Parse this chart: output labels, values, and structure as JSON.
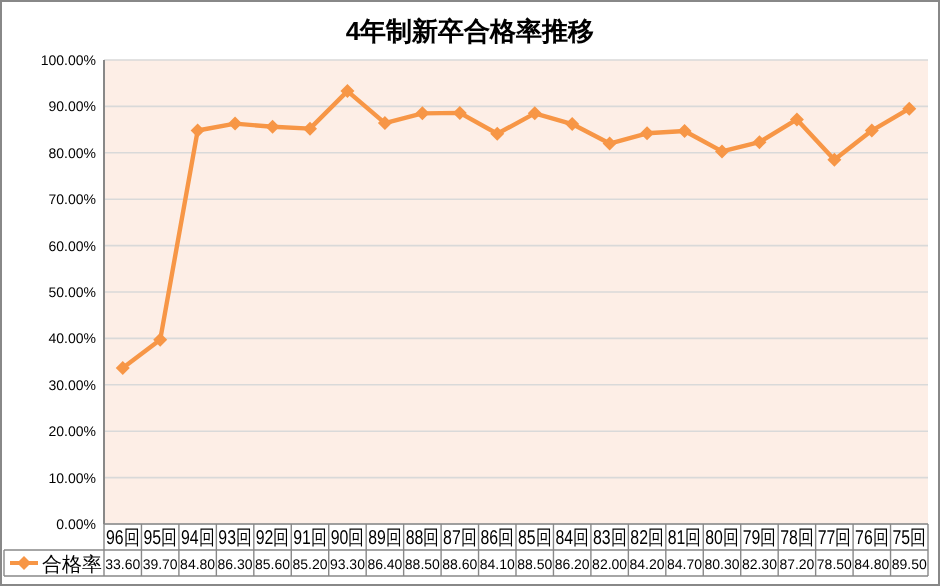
{
  "chart_data": {
    "type": "line",
    "title": "4年制新卒合格率推移",
    "categories": [
      "96回",
      "95回",
      "94回",
      "93回",
      "92回",
      "91回",
      "90回",
      "89回",
      "88回",
      "87回",
      "86回",
      "85回",
      "84回",
      "83回",
      "82回",
      "81回",
      "80回",
      "79回",
      "78回",
      "77回",
      "76回",
      "75回"
    ],
    "series": [
      {
        "name": "合格率",
        "color": "#f79646",
        "values": [
          33.6,
          39.7,
          84.8,
          86.3,
          85.6,
          85.2,
          93.3,
          86.4,
          88.5,
          88.6,
          84.1,
          88.5,
          86.2,
          82.0,
          84.2,
          84.7,
          80.3,
          82.3,
          87.2,
          78.5,
          84.8,
          89.5
        ],
        "value_labels": [
          "33.60",
          "39.70",
          "84.80",
          "86.30",
          "85.60",
          "85.20",
          "93.30",
          "86.40",
          "88.50",
          "88.60",
          "84.10",
          "88.50",
          "86.20",
          "82.00",
          "84.20",
          "84.70",
          "80.30",
          "82.30",
          "87.20",
          "78.50",
          "84.80",
          "89.50"
        ]
      }
    ],
    "ylim": [
      0,
      100
    ],
    "yticks": [
      {
        "value": 0,
        "label": "0.00%"
      },
      {
        "value": 10,
        "label": "10.00%"
      },
      {
        "value": 20,
        "label": "20.00%"
      },
      {
        "value": 30,
        "label": "30.00%"
      },
      {
        "value": 40,
        "label": "40.00%"
      },
      {
        "value": 50,
        "label": "50.00%"
      },
      {
        "value": 60,
        "label": "60.00%"
      },
      {
        "value": 70,
        "label": "70.00%"
      },
      {
        "value": 80,
        "label": "80.00%"
      },
      {
        "value": 90,
        "label": "90.00%"
      },
      {
        "value": 100,
        "label": "100.00%"
      }
    ],
    "grid": "y",
    "legend": "bottom",
    "marker": "diamond"
  }
}
